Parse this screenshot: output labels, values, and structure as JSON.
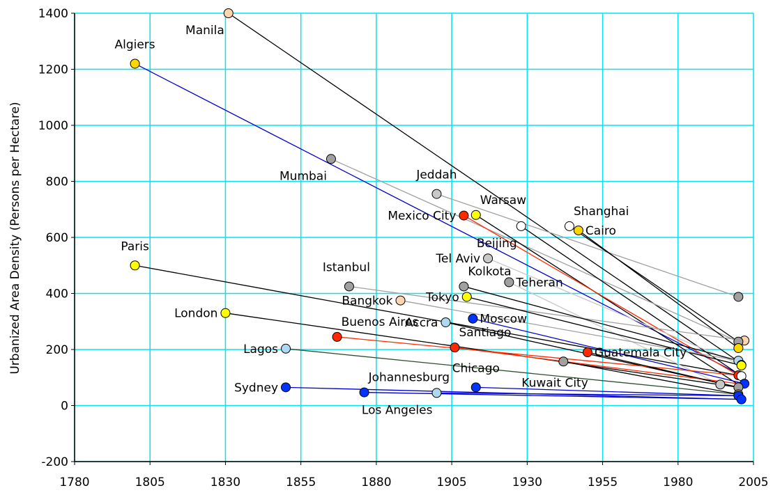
{
  "chart_data": {
    "type": "scatter",
    "title": "",
    "xlabel": "",
    "ylabel": "Urbanized Area Density (Persons per Hectare)",
    "xlim": [
      1780,
      2005
    ],
    "ylim": [
      -200,
      1400
    ],
    "xticks": [
      1780,
      1805,
      1830,
      1855,
      1880,
      1905,
      1930,
      1955,
      1980,
      2005
    ],
    "yticks": [
      -200,
      0,
      200,
      400,
      600,
      800,
      1000,
      1200,
      1400
    ],
    "grid": true,
    "colors": {
      "grid": "#00e5ee",
      "axis": "#000000",
      "black": "#000000",
      "gray": "#a0a0a0",
      "lightgray": "#c8c8c8",
      "blue": "#0000cc",
      "red": "#ff2a00",
      "darkgreen": "#2f4f2f"
    },
    "points": [
      {
        "label": "Manila",
        "x": 1831,
        "y": 1400,
        "fill": "#ffd5b0",
        "label_pos": "below-left"
      },
      {
        "label": "Algiers",
        "x": 1800,
        "y": 1220,
        "fill": "#ffd700",
        "label_pos": "above"
      },
      {
        "label": "Mumbai",
        "x": 1865,
        "y": 880,
        "fill": "#a0a0a0",
        "label_pos": "below-left"
      },
      {
        "label": "Jeddah",
        "x": 1900,
        "y": 755,
        "fill": "#c8c8c8",
        "label_pos": "above"
      },
      {
        "label": "Warsaw",
        "x": 1913,
        "y": 680,
        "fill": "#ffff00",
        "label_pos": "above-right"
      },
      {
        "label": "Mexico City",
        "x": 1909,
        "y": 678,
        "fill": "#ff2a00",
        "label_pos": "left"
      },
      {
        "label": "Shanghai",
        "x": 1944,
        "y": 640,
        "fill": "#ffffff",
        "label_pos": "above-right"
      },
      {
        "label": "Beijing",
        "x": 1928,
        "y": 640,
        "fill": "#ffffff",
        "label_pos": "below-left"
      },
      {
        "label": "Cairo",
        "x": 1947,
        "y": 625,
        "fill": "#ffd700",
        "label_pos": "right"
      },
      {
        "label": "Tel Aviv",
        "x": 1917,
        "y": 525,
        "fill": "#c8c8c8",
        "label_pos": "left"
      },
      {
        "label": "Paris",
        "x": 1800,
        "y": 500,
        "fill": "#ffff00",
        "label_pos": "above"
      },
      {
        "label": "Teheran",
        "x": 1924,
        "y": 440,
        "fill": "#a0a0a0",
        "label_pos": "right"
      },
      {
        "label": "Istanbul",
        "x": 1871,
        "y": 425,
        "fill": "#a0a0a0",
        "label_pos": "above-left"
      },
      {
        "label": "Kolkota",
        "x": 1909,
        "y": 425,
        "fill": "#a0a0a0",
        "label_pos": "above-right"
      },
      {
        "label": "Tokyo",
        "x": 1910,
        "y": 388,
        "fill": "#ffff00",
        "label_pos": "left"
      },
      {
        "label": "Bangkok",
        "x": 1888,
        "y": 375,
        "fill": "#ffd5b0",
        "label_pos": "left"
      },
      {
        "label": "London",
        "x": 1830,
        "y": 330,
        "fill": "#ffff00",
        "label_pos": "left"
      },
      {
        "label": "Moscow",
        "x": 1912,
        "y": 310,
        "fill": "#0033ff",
        "label_pos": "right"
      },
      {
        "label": "Accra",
        "x": 1903,
        "y": 297,
        "fill": "#add8f0",
        "label_pos": "left"
      },
      {
        "label": "Buenos Aires",
        "x": 1867,
        "y": 245,
        "fill": "#ff2a00",
        "label_pos": "above-right"
      },
      {
        "label": "Santiago",
        "x": 1906,
        "y": 207,
        "fill": "#ff2a00",
        "label_pos": "above-right"
      },
      {
        "label": "Lagos",
        "x": 1850,
        "y": 203,
        "fill": "#add8f0",
        "label_pos": "left"
      },
      {
        "label": "Guatemala City",
        "x": 1950,
        "y": 190,
        "fill": "#ff2a00",
        "label_pos": "right"
      },
      {
        "label": "Kuwait City",
        "x": 1942,
        "y": 157,
        "fill": "#a0a0a0",
        "label_pos": "below-right"
      },
      {
        "label": "Sydney",
        "x": 1850,
        "y": 65,
        "fill": "#0033ff",
        "label_pos": "left"
      },
      {
        "label": "Chicago",
        "x": 1913,
        "y": 65,
        "fill": "#0033ff",
        "label_pos": "above"
      },
      {
        "label": "Johannesburg",
        "x": 1876,
        "y": 47,
        "fill": "#0033ff",
        "label_pos": "above-right"
      },
      {
        "label": "Los Angeles",
        "x": 1900,
        "y": 45,
        "fill": "#add8f0",
        "label_pos": "below-left"
      }
    ],
    "endpoints": [
      {
        "x": 2000,
        "y": 388,
        "fill": "#a0a0a0"
      },
      {
        "x": 2002,
        "y": 232,
        "fill": "#ffd5b0"
      },
      {
        "x": 2000,
        "y": 228,
        "fill": "#a0a0a0"
      },
      {
        "x": 2000,
        "y": 205,
        "fill": "#ffd700"
      },
      {
        "x": 2000,
        "y": 160,
        "fill": "#add8f0"
      },
      {
        "x": 2001,
        "y": 145,
        "fill": "#c8c8c8"
      },
      {
        "x": 2001,
        "y": 143,
        "fill": "#ffff00"
      },
      {
        "x": 2000,
        "y": 108,
        "fill": "#ff2a00"
      },
      {
        "x": 2001,
        "y": 105,
        "fill": "#ffffff"
      },
      {
        "x": 1994,
        "y": 75,
        "fill": "#c8c8c8"
      },
      {
        "x": 2002,
        "y": 78,
        "fill": "#0033ff"
      },
      {
        "x": 2000,
        "y": 65,
        "fill": "#a0a0a0"
      },
      {
        "x": 2000,
        "y": 40,
        "fill": "#ffd700"
      },
      {
        "x": 2000,
        "y": 35,
        "fill": "#0033ff"
      },
      {
        "x": 2001,
        "y": 22,
        "fill": "#0033ff"
      }
    ],
    "connections": [
      {
        "from": "Manila",
        "to": [
          2001,
          150
        ],
        "color": "#000000"
      },
      {
        "from": "Algiers",
        "to": [
          2001,
          108
        ],
        "color": "#0000cc"
      },
      {
        "from": "Mumbai",
        "to": [
          2000,
          228
        ],
        "color": "#a0a0a0"
      },
      {
        "from": "Jeddah",
        "to": [
          2000,
          388
        ],
        "color": "#a0a0a0"
      },
      {
        "from": "Warsaw",
        "to": [
          2000,
          75
        ],
        "color": "#000000"
      },
      {
        "from": "Mexico City",
        "to": [
          2000,
          108
        ],
        "color": "#ff2a00"
      },
      {
        "from": "Shanghai",
        "to": [
          2000,
          228
        ],
        "color": "#000000"
      },
      {
        "from": "Beijing",
        "to": [
          2001,
          105
        ],
        "color": "#000000"
      },
      {
        "from": "Cairo",
        "to": [
          2000,
          205
        ],
        "color": "#000000"
      },
      {
        "from": "Tel Aviv",
        "to": [
          2001,
          145
        ],
        "color": "#c8c8c8"
      },
      {
        "from": "Paris",
        "to": [
          2000,
          108
        ],
        "color": "#000000"
      },
      {
        "from": "Teheran",
        "to": [
          1994,
          75
        ],
        "color": "#c8c8c8"
      },
      {
        "from": "Istanbul",
        "to": [
          2002,
          232
        ],
        "color": "#a0a0a0"
      },
      {
        "from": "Kolkota",
        "to": [
          2000,
          160
        ],
        "color": "#000000"
      },
      {
        "from": "Tokyo",
        "to": [
          2001,
          143
        ],
        "color": "#000000"
      },
      {
        "from": "Bangkok",
        "to": [
          2000,
          160
        ],
        "color": "#a0a0a0"
      },
      {
        "from": "London",
        "to": [
          2000,
          65
        ],
        "color": "#000000"
      },
      {
        "from": "Moscow",
        "to": [
          2002,
          78
        ],
        "color": "#0000cc"
      },
      {
        "from": "Accra",
        "to": [
          2000,
          65
        ],
        "color": "#000000"
      },
      {
        "from": "Buenos Aires",
        "to": [
          2000,
          108
        ],
        "color": "#ff2a00"
      },
      {
        "from": "Santiago",
        "to": [
          2000,
          78
        ],
        "color": "#ff2a00"
      },
      {
        "from": "Lagos",
        "to": [
          2000,
          40
        ],
        "color": "#2f4f2f"
      },
      {
        "from": "Guatemala City",
        "to": [
          2000,
          65
        ],
        "color": "#000000"
      },
      {
        "from": "Kuwait City",
        "to": [
          2000,
          40
        ],
        "color": "#000000"
      },
      {
        "from": "Sydney",
        "to": [
          2001,
          22
        ],
        "color": "#0000cc"
      },
      {
        "from": "Chicago",
        "to": [
          2000,
          35
        ],
        "color": "#0000cc"
      },
      {
        "from": "Johannesburg",
        "to": [
          2001,
          22
        ],
        "color": "#0000cc"
      },
      {
        "from": "Los Angeles",
        "to": [
          2000,
          35
        ],
        "color": "#0000cc"
      }
    ]
  }
}
